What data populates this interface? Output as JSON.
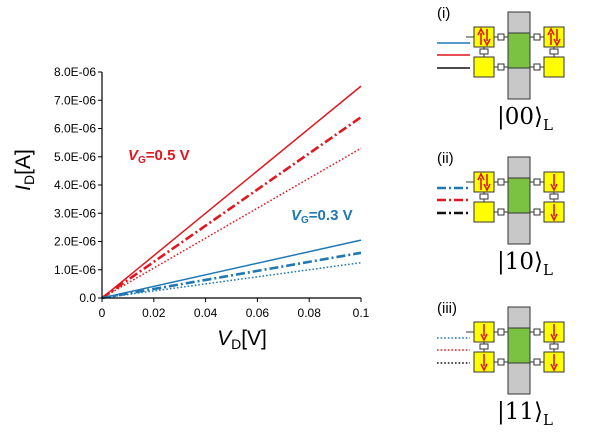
{
  "chart_data": {
    "type": "line",
    "xlabel": {
      "main": "V",
      "sub": "D",
      "unit": "[V]"
    },
    "ylabel": {
      "main": "I",
      "sub": "D",
      "unit": "[A]"
    },
    "xlim": [
      0,
      0.1
    ],
    "ylim": [
      0,
      8e-06
    ],
    "x_ticks": [
      0,
      0.02,
      0.04,
      0.06,
      0.08,
      0.1
    ],
    "x_tick_labels": [
      "0",
      "0.02",
      "0.04",
      "0.06",
      "0.08",
      "0.1"
    ],
    "y_ticks": [
      0,
      1e-06,
      2e-06,
      3e-06,
      4e-06,
      5e-06,
      6e-06,
      7e-06,
      8e-06
    ],
    "y_tick_labels": [
      "0.0",
      "1.0E-06",
      "2.0E-06",
      "3.0E-06",
      "4.0E-06",
      "5.0E-06",
      "6.0E-06",
      "7.0E-06",
      "8.0E-06"
    ],
    "grid": false,
    "annotations": [
      {
        "main": "V",
        "sub": "G",
        "rest": "=0.5 V",
        "color": "#e0171e"
      },
      {
        "main": "V",
        "sub": "G",
        "rest": "=0.3 V",
        "color": "#1f78b4"
      }
    ],
    "series": [
      {
        "color": "#e0171e",
        "dash": "solid",
        "x": [
          0,
          0.1
        ],
        "y": [
          0,
          7.5e-06
        ]
      },
      {
        "color": "#e0171e",
        "dash": "dashdot",
        "x": [
          0,
          0.1
        ],
        "y": [
          0,
          6.4e-06
        ]
      },
      {
        "color": "#e0171e",
        "dash": "dotted",
        "x": [
          0,
          0.1
        ],
        "y": [
          0,
          5.3e-06
        ]
      },
      {
        "color": "#1f78b4",
        "dash": "solid",
        "x": [
          0,
          0.1
        ],
        "y": [
          0,
          2.05e-06
        ]
      },
      {
        "color": "#1f78b4",
        "dash": "dashdot",
        "x": [
          0,
          0.1
        ],
        "y": [
          0,
          1.6e-06
        ]
      },
      {
        "color": "#1f78b4",
        "dash": "dotted",
        "x": [
          0,
          0.1
        ],
        "y": [
          0,
          1.25e-06
        ]
      }
    ]
  },
  "panels": [
    {
      "label": "(i)",
      "ket": "|00⟩",
      "ket_sub": "L",
      "legend": [
        {
          "color": "#1f78b4",
          "dash": "solid"
        },
        {
          "color": "#e0171e",
          "dash": "solid"
        },
        {
          "color": "#111111",
          "dash": "solid"
        }
      ]
    },
    {
      "label": "(ii)",
      "ket": "|10⟩",
      "ket_sub": "L",
      "legend": [
        {
          "color": "#1f78b4",
          "dash": "dashdot"
        },
        {
          "color": "#e0171e",
          "dash": "dashdot"
        },
        {
          "color": "#111111",
          "dash": "dashdot"
        }
      ]
    },
    {
      "label": "(iii)",
      "ket": "|11⟩",
      "ket_sub": "L",
      "legend": [
        {
          "color": "#1f78b4",
          "dash": "dotted"
        },
        {
          "color": "#e0171e",
          "dash": "dotted"
        },
        {
          "color": "#111111",
          "dash": "dotted"
        }
      ]
    }
  ],
  "colors": {
    "red": "#e0171e",
    "blue": "#1f78b4",
    "dot_fill": "#ffff00",
    "channel": "#7cc242",
    "gate": "#c8c8c8"
  }
}
